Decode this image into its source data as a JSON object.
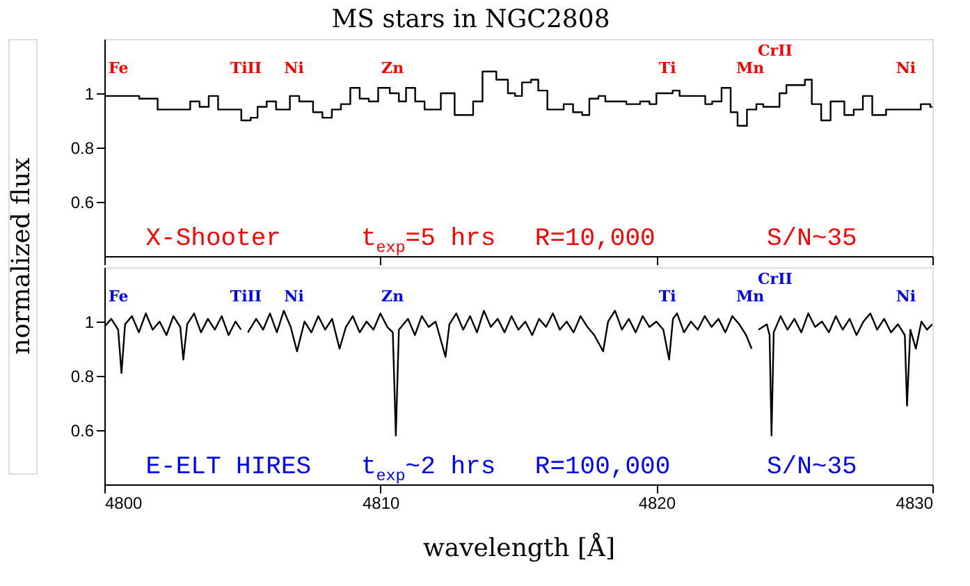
{
  "chart_data": [
    {
      "type": "step",
      "title": "MS stars in NGC2808",
      "ylabel": "normalized flux",
      "tick_labels": "y",
      "xlim": [
        4800,
        4830
      ],
      "xticks": [
        4800,
        4810,
        4820,
        4830
      ],
      "ylim": [
        0.4,
        1.2
      ],
      "yticks": [
        0.6,
        0.8,
        1
      ],
      "series": [
        {
          "color": "#000000",
          "x": [
            4800,
            4801.26,
            4801.93,
            4802.27,
            4803.11,
            4803.45,
            4803.78,
            4804.12,
            4804.96,
            4805.3,
            4805.55,
            4805.88,
            4806.22,
            4806.72,
            4807.06,
            4807.56,
            4807.9,
            4808.24,
            4808.57,
            4808.91,
            4809.25,
            4809.58,
            4809.92,
            4810.34,
            4810.67,
            4810.93,
            4811.26,
            4811.6,
            4812.19,
            4812.69,
            4813.36,
            4813.7,
            4814.2,
            4814.62,
            4814.88,
            4815.13,
            4815.46,
            4815.72,
            4816.05,
            4816.39,
            4816.64,
            4816.98,
            4817.31,
            4817.57,
            4817.9,
            4818.15,
            4818.91,
            4819.41,
            4819.75,
            4820.0,
            4820.59,
            4820.84,
            4821.77,
            4822.02,
            4822.36,
            4822.69,
            4822.94,
            4823.28,
            4823.62,
            4823.87,
            4824.46,
            4824.71,
            4825.05,
            4825.38,
            4825.63,
            4825.97,
            4826.31,
            4826.81,
            4827.15,
            4827.48,
            4827.82,
            4828.32,
            4829.58,
            4829.92,
            4830
          ],
          "values": [
            0.99,
            0.98,
            0.94,
            0.94,
            0.97,
            0.95,
            0.99,
            0.94,
            0.9,
            0.91,
            0.95,
            0.97,
            0.94,
            0.99,
            0.97,
            0.93,
            0.91,
            0.94,
            0.96,
            1.02,
            0.98,
            0.97,
            1.02,
            1.0,
            0.97,
            1.02,
            0.97,
            0.94,
            1.0,
            0.92,
            0.97,
            1.08,
            1.05,
            1.0,
            0.99,
            1.04,
            1.05,
            1.01,
            0.94,
            0.94,
            0.96,
            0.93,
            0.92,
            0.98,
            0.99,
            0.97,
            0.96,
            0.97,
            0.96,
            1.0,
            1.01,
            0.99,
            0.96,
            0.97,
            1.02,
            0.93,
            0.88,
            0.94,
            0.96,
            0.95,
            1.0,
            1.03,
            1.03,
            1.05,
            0.96,
            0.9,
            0.97,
            0.92,
            0.94,
            0.99,
            0.92,
            0.94,
            0.96,
            0.95,
            0.95
          ]
        }
      ],
      "annotations": [
        "Fe",
        "TiII",
        "Ni",
        "Zn",
        "Ti",
        "Mn",
        "CrII",
        "Ni",
        "X-Shooter",
        "t$_{exp}$=5 hrs",
        "R=10,000",
        "S/N~35"
      ]
    },
    {
      "type": "line",
      "xlabel": "wavelength [Å]",
      "xlim": [
        4800,
        4830
      ],
      "xticks": [
        4800,
        4810,
        4820,
        4830
      ],
      "ylim": [
        0.4,
        1.2
      ],
      "yticks": [
        0.6,
        0.8,
        1
      ],
      "series": [
        {
          "color": "#000000",
          "x": [
            4800.0,
            4800.25,
            4800.5,
            4800.62,
            4800.75,
            4801.0,
            4801.25,
            4801.5,
            4801.75,
            4802.0,
            4802.25,
            4802.5,
            4802.75,
            4802.86,
            4803.0,
            4803.25,
            4803.5,
            4803.75,
            4804.0,
            4804.25,
            4804.5,
            4804.75,
            4804.95,
            4805.05,
            4805.12,
            4805.2,
            4805.5,
            4805.75,
            4806.0,
            4806.25,
            4806.5,
            4806.75,
            4806.98,
            4807.25,
            4807.5,
            4807.75,
            4808.0,
            4808.25,
            4808.52,
            4808.75,
            4809.0,
            4809.25,
            4809.5,
            4809.75,
            4810.0,
            4810.25,
            4810.45,
            4810.56,
            4810.67,
            4811.0,
            4811.25,
            4811.5,
            4811.75,
            4812.0,
            4812.36,
            4812.5,
            4812.75,
            4813.0,
            4813.25,
            4813.5,
            4813.75,
            4814.0,
            4814.25,
            4814.5,
            4814.75,
            4815.0,
            4815.25,
            4815.5,
            4815.75,
            4816.0,
            4816.25,
            4816.5,
            4816.75,
            4817.0,
            4817.25,
            4817.5,
            4817.75,
            4818.07,
            4818.25,
            4818.5,
            4818.75,
            4819.0,
            4819.25,
            4819.5,
            4819.75,
            4820.0,
            4820.25,
            4820.46,
            4820.6,
            4820.75,
            4821.0,
            4821.25,
            4821.5,
            4821.75,
            4822.0,
            4822.25,
            4822.5,
            4822.75,
            4823.0,
            4823.25,
            4823.45,
            4823.5,
            4823.6,
            4823.7,
            4824.0,
            4824.1,
            4824.17,
            4824.25,
            4824.5,
            4824.75,
            4825.0,
            4825.25,
            4825.5,
            4825.75,
            4826.0,
            4826.25,
            4826.5,
            4826.75,
            4827.0,
            4827.25,
            4827.5,
            4827.75,
            4828.0,
            4828.25,
            4828.5,
            4828.75,
            4829.0,
            4829.08,
            4829.2,
            4829.4,
            4829.6,
            4829.8,
            4830.0
          ],
          "values": [
            0.98,
            1.01,
            0.97,
            0.81,
            0.99,
            1.02,
            0.96,
            1.03,
            0.97,
            1.0,
            0.95,
            1.02,
            0.98,
            0.86,
            0.99,
            1.03,
            0.96,
            1.01,
            0.97,
            1.02,
            0.95,
            1.0,
            0.97,
            null,
            null,
            0.96,
            1.01,
            0.97,
            1.03,
            0.96,
            1.04,
            0.98,
            0.89,
            1.0,
            0.96,
            1.02,
            0.97,
            1.01,
            0.9,
            0.98,
            1.02,
            0.96,
            1.0,
            0.97,
            1.03,
            0.98,
            0.96,
            0.58,
            0.97,
            1.01,
            0.95,
            1.02,
            0.98,
            1.0,
            0.87,
            0.99,
            1.03,
            0.97,
            1.02,
            0.96,
            1.04,
            0.98,
            1.01,
            0.96,
            1.02,
            0.97,
            1.0,
            0.95,
            1.01,
            0.98,
            1.03,
            0.97,
            1.0,
            0.96,
            1.02,
            0.98,
            0.95,
            0.89,
            1.0,
            1.04,
            0.97,
            1.01,
            0.96,
            1.02,
            0.98,
            1.0,
            0.97,
            0.86,
            1.01,
            1.03,
            0.96,
            1.0,
            0.97,
            1.02,
            0.98,
            1.01,
            0.96,
            1.02,
            0.99,
            0.95,
            0.9,
            null,
            null,
            0.97,
            0.99,
            0.95,
            0.58,
            0.96,
            1.02,
            0.97,
            1.01,
            0.96,
            1.03,
            0.98,
            1.0,
            0.96,
            1.02,
            0.97,
            1.01,
            0.95,
            1.0,
            1.03,
            0.97,
            1.01,
            0.96,
            0.99,
            0.95,
            0.69,
            0.97,
            0.9,
            1.0,
            0.97,
            0.99
          ]
        }
      ],
      "annotations": [
        "Fe",
        "TiII",
        "Ni",
        "Zn",
        "Ti",
        "Mn",
        "CrII",
        "Ni",
        "E-ELT HIRES",
        "t$_{exp}$~2 hrs",
        "R=100,000",
        "S/N~35"
      ]
    }
  ]
}
